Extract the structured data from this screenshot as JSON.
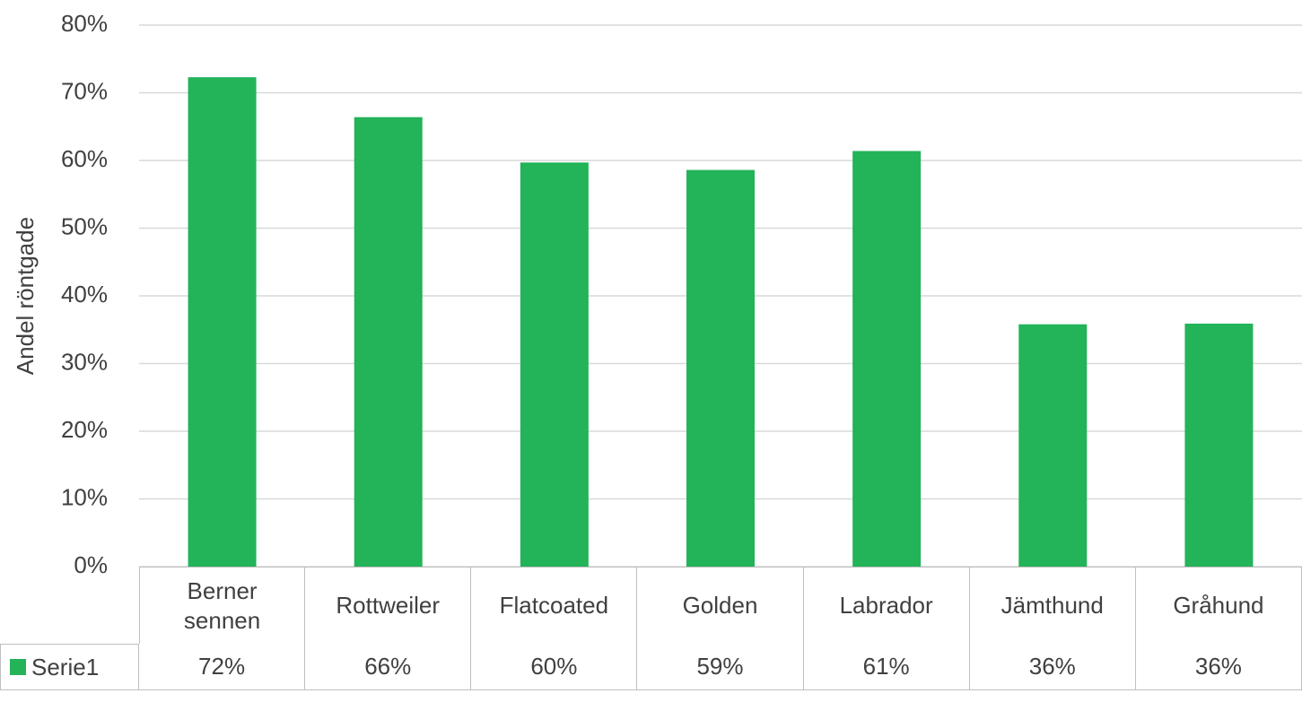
{
  "chart_data": {
    "type": "bar",
    "y_label": "Andel röntgade",
    "categories": [
      "Berner sennen",
      "Rottweiler",
      "Flatcoated",
      "Golden",
      "Labrador",
      "Jämthund",
      "Gråhund"
    ],
    "series": [
      {
        "name": "Serie1",
        "color": "#23b359",
        "values": [
          72.3,
          66.4,
          59.7,
          58.6,
          61.4,
          35.8,
          35.9
        ],
        "value_labels": [
          "72%",
          "66%",
          "60%",
          "59%",
          "61%",
          "36%",
          "36%"
        ]
      }
    ],
    "ylim": [
      0,
      80
    ],
    "yticks": [
      {
        "value": 0,
        "label": "0%"
      },
      {
        "value": 10,
        "label": "10%"
      },
      {
        "value": 20,
        "label": "20%"
      },
      {
        "value": 30,
        "label": "30%"
      },
      {
        "value": 40,
        "label": "40%"
      },
      {
        "value": 50,
        "label": "50%"
      },
      {
        "value": 60,
        "label": "60%"
      },
      {
        "value": 70,
        "label": "70%"
      },
      {
        "value": 80,
        "label": "80%"
      }
    ],
    "grid": true,
    "data_table": true
  }
}
